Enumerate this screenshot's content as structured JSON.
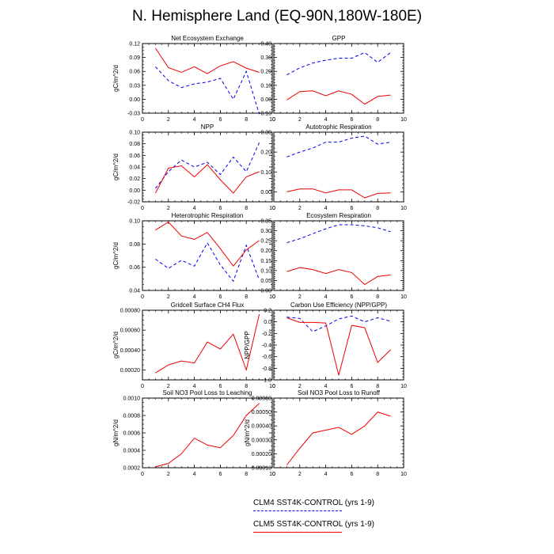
{
  "figure": {
    "title": "N. Hemisphere Land (EQ-90N,180W-180E)",
    "series_colors": {
      "CLM4 SST4K-CONTROL (yrs 1-9)": "#0000ee",
      "CLM5 SST4K-CONTROL (yrs 1-9)": "#ee0000"
    }
  },
  "legend": [
    {
      "label": "CLM4 SST4K-CONTROL (yrs 1-9)",
      "color": "#0000ee",
      "dash": "dashed"
    },
    {
      "label": "CLM5 SST4K-CONTROL (yrs 1-9)",
      "color": "#ee0000",
      "dash": "solid"
    }
  ],
  "chart_data": [
    {
      "type": "line",
      "title": "Net Ecosystem Exchange",
      "ylabel": "gC/m^2/d",
      "xlim": [
        0,
        10
      ],
      "ylim": [
        -0.03,
        0.12
      ],
      "xticks": [
        0,
        2,
        4,
        6,
        8,
        10
      ],
      "xtick_labels": [
        "0",
        "2",
        "4",
        "6",
        "8",
        "10"
      ],
      "yticks": [
        -0.03,
        0,
        0.03,
        0.06,
        0.09,
        0.12
      ],
      "ytick_labels": [
        "-0.03",
        "0.00",
        "0.03",
        "0.06",
        "0.09",
        "0.12"
      ],
      "yminor": 3,
      "x": [
        1,
        2,
        3,
        4,
        5,
        6,
        7,
        8,
        9
      ],
      "series": [
        {
          "name": "CLM4 SST4K-CONTROL (yrs 1-9)",
          "color": "#0000ee",
          "dash": "dashed",
          "values": [
            0.07,
            0.04,
            0.025,
            0.033,
            0.037,
            0.045,
            0.0,
            0.06,
            -0.032
          ]
        },
        {
          "name": "CLM5 SST4K-CONTROL (yrs 1-9)",
          "color": "#ee0000",
          "dash": "solid",
          "values": [
            0.11,
            0.068,
            0.058,
            0.07,
            0.055,
            0.072,
            0.081,
            0.067,
            0.058
          ]
        }
      ]
    },
    {
      "type": "line",
      "title": "GPP",
      "ylabel": "",
      "xlim": [
        0,
        10
      ],
      "ylim": [
        -0.1,
        0.4
      ],
      "xticks": [
        0,
        2,
        4,
        6,
        8,
        10
      ],
      "xtick_labels": [
        "0",
        "2",
        "4",
        "6",
        "8",
        "10"
      ],
      "yticks": [
        -0.1,
        0,
        0.1,
        0.2,
        0.3,
        0.4
      ],
      "ytick_labels": [
        "-0.10",
        "0.00",
        "0.10",
        "0.20",
        "0.30",
        "0.40"
      ],
      "yminor": 4,
      "x": [
        1,
        2,
        3,
        4,
        5,
        6,
        7,
        8,
        9
      ],
      "series": [
        {
          "name": "CLM4 SST4K-CONTROL (yrs 1-9)",
          "color": "#0000ee",
          "dash": "dashed",
          "values": [
            0.175,
            0.225,
            0.26,
            0.28,
            0.295,
            0.295,
            0.335,
            0.265,
            0.335
          ]
        },
        {
          "name": "CLM5 SST4K-CONTROL (yrs 1-9)",
          "color": "#ee0000",
          "dash": "solid",
          "values": [
            -0.005,
            0.055,
            0.06,
            0.025,
            0.06,
            0.035,
            -0.035,
            0.02,
            0.03
          ]
        }
      ]
    },
    {
      "type": "line",
      "title": "NPP",
      "ylabel": "gC/m^2/d",
      "xlim": [
        0,
        10
      ],
      "ylim": [
        -0.02,
        0.1
      ],
      "xticks": [
        0,
        2,
        4,
        6,
        8,
        10
      ],
      "xtick_labels": [
        "0",
        "2",
        "4",
        "6",
        "8",
        "10"
      ],
      "yticks": [
        -0.02,
        0,
        0.02,
        0.04,
        0.06,
        0.08,
        0.1
      ],
      "ytick_labels": [
        "-0.02",
        "0.00",
        "0.02",
        "0.04",
        "0.06",
        "0.08",
        "0.10"
      ],
      "yminor": 3,
      "x": [
        1,
        2,
        3,
        4,
        5,
        6,
        7,
        8,
        9
      ],
      "series": [
        {
          "name": "CLM4 SST4K-CONTROL (yrs 1-9)",
          "color": "#0000ee",
          "dash": "dashed",
          "values": [
            0.003,
            0.032,
            0.052,
            0.04,
            0.048,
            0.027,
            0.057,
            0.032,
            0.082
          ]
        },
        {
          "name": "CLM5 SST4K-CONTROL (yrs 1-9)",
          "color": "#ee0000",
          "dash": "solid",
          "values": [
            -0.005,
            0.038,
            0.042,
            0.023,
            0.044,
            0.018,
            -0.005,
            0.023,
            0.032
          ]
        }
      ]
    },
    {
      "type": "line",
      "title": "Autotrophic Respiration",
      "ylabel": "",
      "xlim": [
        0,
        10
      ],
      "ylim": [
        -0.05,
        0.3
      ],
      "xticks": [
        0,
        2,
        4,
        6,
        8,
        10
      ],
      "xtick_labels": [
        "0",
        "2",
        "4",
        "6",
        "8",
        "10"
      ],
      "yticks": [
        0,
        0.1,
        0.2,
        0.3
      ],
      "ytick_labels": [
        "0.00",
        "0.10",
        "0.20",
        "0.30"
      ],
      "yminor": 4,
      "x": [
        1,
        2,
        3,
        4,
        5,
        6,
        7,
        8,
        9
      ],
      "series": [
        {
          "name": "CLM4 SST4K-CONTROL (yrs 1-9)",
          "color": "#0000ee",
          "dash": "dashed",
          "values": [
            0.175,
            0.2,
            0.22,
            0.25,
            0.25,
            0.27,
            0.28,
            0.24,
            0.25
          ]
        },
        {
          "name": "CLM5 SST4K-CONTROL (yrs 1-9)",
          "color": "#ee0000",
          "dash": "solid",
          "values": [
            0.0,
            0.015,
            0.015,
            -0.005,
            0.01,
            0.01,
            -0.03,
            -0.008,
            -0.005
          ]
        }
      ]
    },
    {
      "type": "line",
      "title": "Heterotrophic Respiration",
      "ylabel": "gC/m^2/d",
      "xlim": [
        0,
        10
      ],
      "ylim": [
        0.04,
        0.1
      ],
      "xticks": [
        0,
        2,
        4,
        6,
        8,
        10
      ],
      "xtick_labels": [
        "0",
        "2",
        "4",
        "6",
        "8",
        "10"
      ],
      "yticks": [
        0.04,
        0.06,
        0.08,
        0.1
      ],
      "ytick_labels": [
        "0.04",
        "0.06",
        "0.08",
        "0.10"
      ],
      "yminor": 3,
      "x": [
        1,
        2,
        3,
        4,
        5,
        6,
        7,
        8,
        9
      ],
      "series": [
        {
          "name": "CLM4 SST4K-CONTROL (yrs 1-9)",
          "color": "#0000ee",
          "dash": "dashed",
          "values": [
            0.067,
            0.059,
            0.066,
            0.061,
            0.081,
            0.062,
            0.048,
            0.079,
            0.049
          ]
        },
        {
          "name": "CLM5 SST4K-CONTROL (yrs 1-9)",
          "color": "#ee0000",
          "dash": "solid",
          "values": [
            0.092,
            0.099,
            0.087,
            0.084,
            0.09,
            0.076,
            0.061,
            0.075,
            0.083
          ]
        }
      ]
    },
    {
      "type": "line",
      "title": "Ecosystem Respiration",
      "ylabel": "",
      "xlim": [
        0,
        10
      ],
      "ylim": [
        0,
        0.35
      ],
      "xticks": [
        0,
        2,
        4,
        6,
        8,
        10
      ],
      "xtick_labels": [
        "0",
        "2",
        "4",
        "6",
        "8",
        "10"
      ],
      "yticks": [
        0,
        0.05,
        0.1,
        0.15,
        0.2,
        0.25,
        0.3,
        0.35
      ],
      "ytick_labels": [
        "0.00",
        "0.05",
        "0.10",
        "0.15",
        "0.20",
        "0.25",
        "0.30",
        "0.35"
      ],
      "yminor": 4,
      "x": [
        1,
        2,
        3,
        4,
        5,
        6,
        7,
        8,
        9
      ],
      "series": [
        {
          "name": "CLM4 SST4K-CONTROL (yrs 1-9)",
          "color": "#0000ee",
          "dash": "dashed",
          "values": [
            0.24,
            0.26,
            0.285,
            0.31,
            0.33,
            0.33,
            0.325,
            0.315,
            0.295
          ]
        },
        {
          "name": "CLM5 SST4K-CONTROL (yrs 1-9)",
          "color": "#ee0000",
          "dash": "solid",
          "values": [
            0.095,
            0.115,
            0.105,
            0.085,
            0.105,
            0.09,
            0.03,
            0.07,
            0.078
          ]
        }
      ]
    },
    {
      "type": "line",
      "title": "Gridcell Surface CH4 Flux",
      "ylabel": "gC/m^2/d",
      "xlim": [
        0,
        10
      ],
      "ylim": [
        0.0001,
        0.0008
      ],
      "xticks": [
        0,
        2,
        4,
        6,
        8,
        10
      ],
      "xtick_labels": [
        "0",
        "2",
        "4",
        "6",
        "8",
        "10"
      ],
      "yticks": [
        0.0002,
        0.0004,
        0.0006,
        0.0008
      ],
      "ytick_labels": [
        "0.00020",
        "0.00040",
        "0.00060",
        "0.00080"
      ],
      "yminor": 3,
      "x": [
        1,
        2,
        3,
        4,
        5,
        6,
        7,
        8,
        9
      ],
      "series": [
        {
          "name": "CLM5 SST4K-CONTROL (yrs 1-9)",
          "color": "#ee0000",
          "dash": "solid",
          "values": [
            0.00017,
            0.00025,
            0.00029,
            0.00027,
            0.00048,
            0.00041,
            0.00056,
            0.0002,
            0.00076
          ]
        }
      ]
    },
    {
      "type": "line",
      "title": "Carbon Use Efficiency (NPP/GPP)",
      "ylabel": "NPP/GPP",
      "xlim": [
        0,
        10
      ],
      "ylim": [
        -1.0,
        0.2
      ],
      "xticks": [
        0,
        2,
        4,
        6,
        8,
        10
      ],
      "xtick_labels": [
        "0",
        "2",
        "4",
        "6",
        "8",
        "10"
      ],
      "yticks": [
        -1.0,
        -0.8,
        -0.6,
        -0.4,
        -0.2,
        0,
        0.2
      ],
      "ytick_labels": [
        "-1.0",
        "-0.8",
        "-0.6",
        "-0.4",
        "-0.2",
        "0.0",
        "0.2"
      ],
      "yminor": 3,
      "x": [
        1,
        2,
        3,
        4,
        5,
        6,
        7,
        8,
        9
      ],
      "series": [
        {
          "name": "CLM4 SST4K-CONTROL (yrs 1-9)",
          "color": "#0000ee",
          "dash": "dashed",
          "values": [
            0.08,
            0.06,
            -0.17,
            -0.07,
            0.05,
            0.1,
            0.0,
            0.07,
            0.01
          ]
        },
        {
          "name": "CLM5 SST4K-CONTROL (yrs 1-9)",
          "color": "#ee0000",
          "dash": "solid",
          "values": [
            0.07,
            -0.01,
            -0.01,
            -0.02,
            -0.92,
            -0.06,
            -0.1,
            -0.7,
            -0.48
          ]
        }
      ]
    },
    {
      "type": "line",
      "title": "Soil NO3 Pool Loss to Leaching",
      "ylabel": "gN/m^2/d",
      "xlim": [
        0,
        10
      ],
      "ylim": [
        0.0002,
        0.001
      ],
      "xticks": [
        0,
        2,
        4,
        6,
        8,
        10
      ],
      "xtick_labels": [
        "0",
        "2",
        "4",
        "6",
        "8",
        "10"
      ],
      "yticks": [
        0.0002,
        0.0004,
        0.0006,
        0.0008,
        0.001
      ],
      "ytick_labels": [
        "0.0002",
        "0.0004",
        "0.0006",
        "0.0008",
        "0.0010"
      ],
      "yminor": 3,
      "x": [
        1,
        2,
        3,
        4,
        5,
        6,
        7,
        8,
        9
      ],
      "series": [
        {
          "name": "CLM5 SST4K-CONTROL (yrs 1-9)",
          "color": "#ee0000",
          "dash": "solid",
          "values": [
            0.00021,
            0.00025,
            0.00036,
            0.00054,
            0.00046,
            0.00043,
            0.00057,
            0.0008,
            0.00094
          ]
        }
      ]
    },
    {
      "type": "line",
      "title": "Soil NO3 Pool Loss to Runoff",
      "ylabel": "gN/m^2/d",
      "xlim": [
        0,
        10
      ],
      "ylim": [
        0.0001,
        0.0006
      ],
      "xticks": [
        0,
        2,
        4,
        6,
        8,
        10
      ],
      "xtick_labels": [
        "0",
        "2",
        "4",
        "6",
        "8",
        "10"
      ],
      "yticks": [
        0.0001,
        0.0002,
        0.0003,
        0.0004,
        0.0005,
        0.0006
      ],
      "ytick_labels": [
        "0.00010",
        "0.00020",
        "0.00030",
        "0.00040",
        "0.00050",
        "0.00060"
      ],
      "yminor": 3,
      "x": [
        1,
        2,
        3,
        4,
        5,
        6,
        7,
        8,
        9
      ],
      "series": [
        {
          "name": "CLM5 SST4K-CONTROL (yrs 1-9)",
          "color": "#ee0000",
          "dash": "solid",
          "values": [
            0.00012,
            0.00024,
            0.00035,
            0.00037,
            0.00039,
            0.00034,
            0.0004,
            0.0005,
            0.00047
          ]
        }
      ]
    }
  ]
}
